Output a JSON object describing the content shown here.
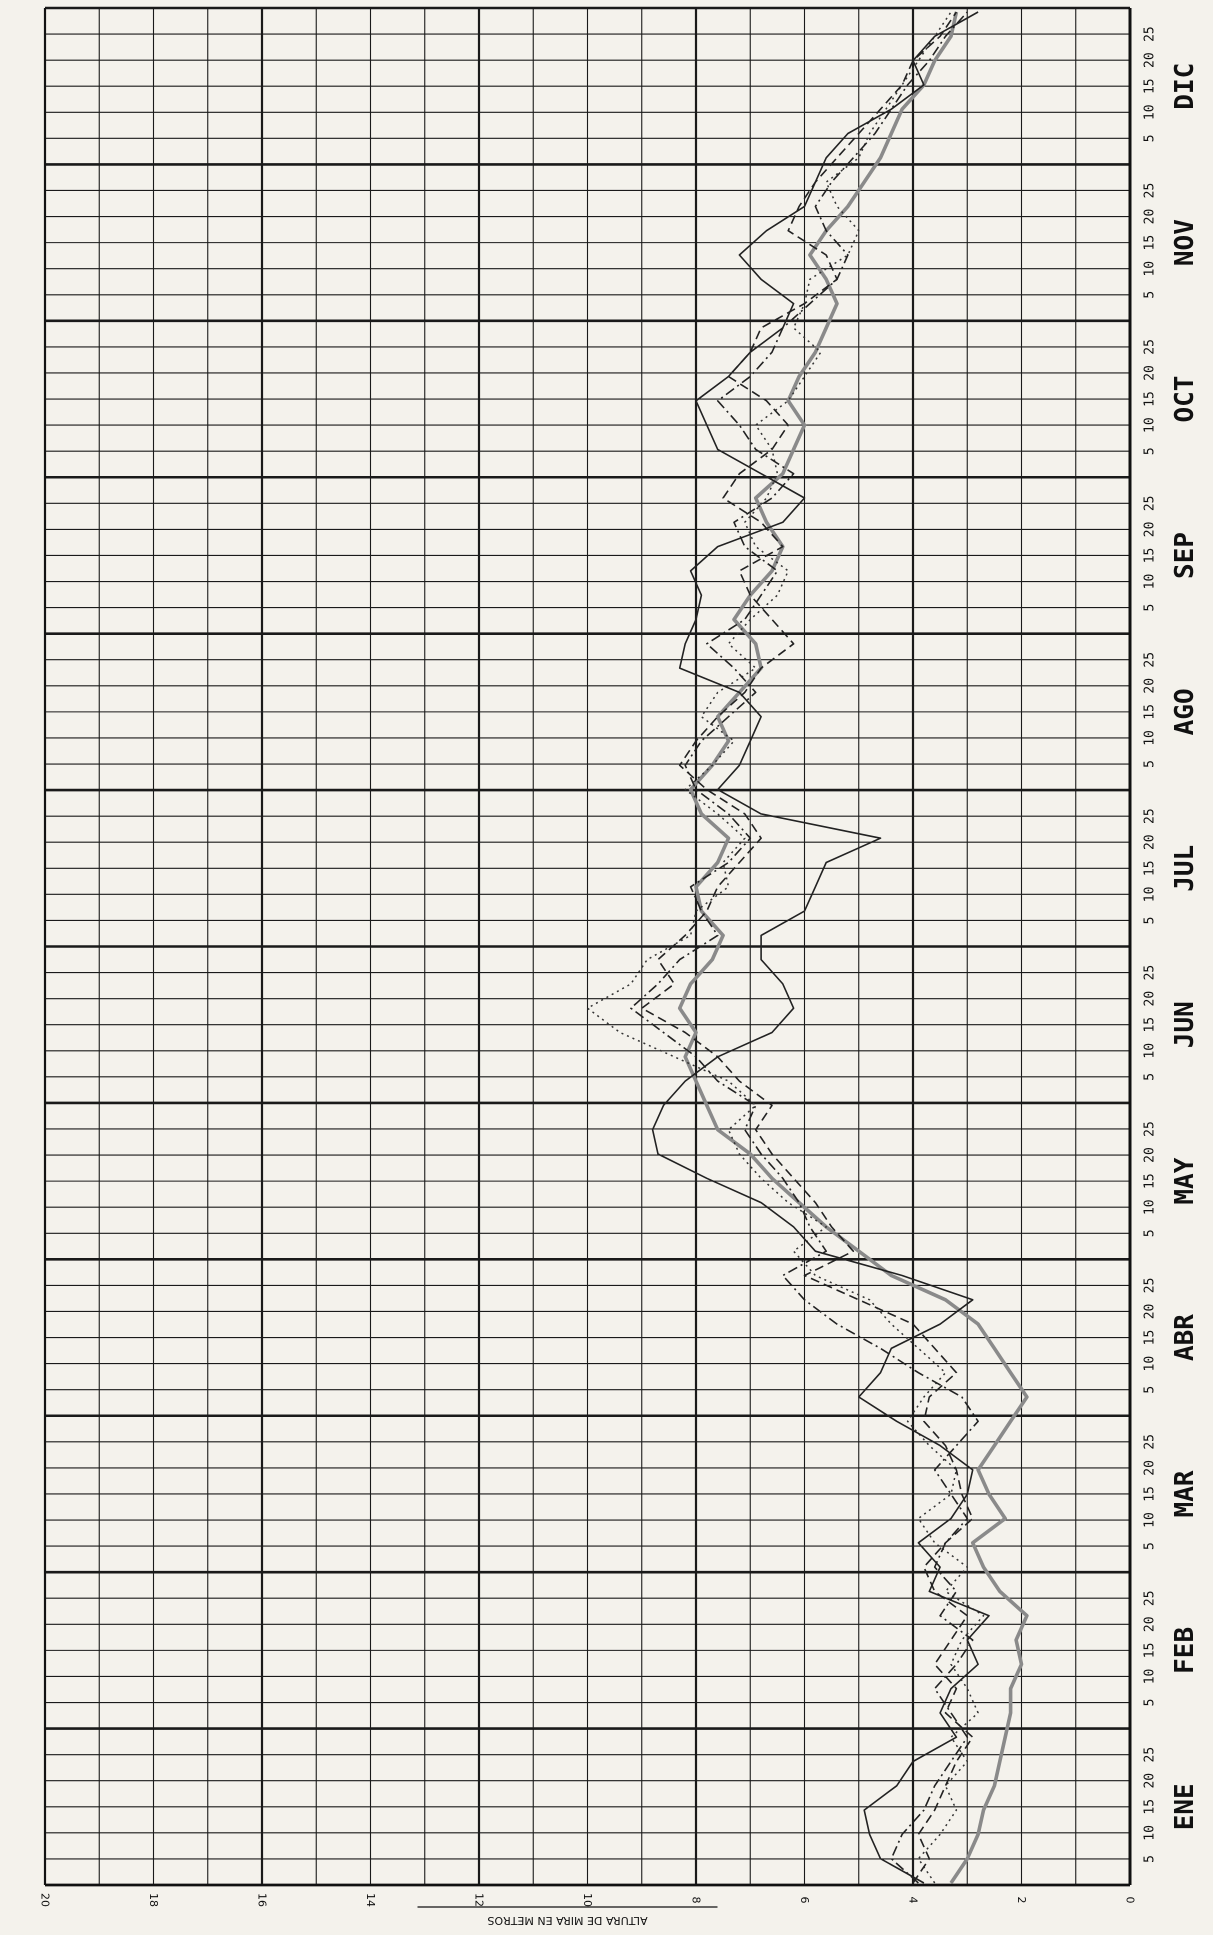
{
  "chart_data": {
    "type": "line",
    "ylabel": "ALTURA DE MIRA EN METROS",
    "ylim": [
      0,
      20
    ],
    "y_reversed": true,
    "y_tick_step_minor": 1,
    "y_ticks": [
      20,
      18,
      16,
      14,
      12,
      10,
      8,
      6,
      4,
      2,
      0
    ],
    "months": [
      "ENE",
      "FEB",
      "MAR",
      "ABR",
      "MAY",
      "JUN",
      "JUL",
      "AGO",
      "SEP",
      "OCT",
      "NOV",
      "DIC"
    ],
    "day_ticks": [
      5,
      10,
      15,
      20,
      25
    ],
    "grid": true,
    "series": [
      {
        "style": "solid",
        "values": [
          3.8,
          4.6,
          4.8,
          4.9,
          4.3,
          4.0,
          3.2,
          3.5,
          3.3,
          2.8,
          3.0,
          2.6,
          3.7,
          3.5,
          3.9,
          3.3,
          3.0,
          2.9,
          3.5,
          4.3,
          5.0,
          4.6,
          4.4,
          3.5,
          2.9,
          4.2,
          5.8,
          6.2,
          6.8,
          7.8,
          8.7,
          8.8,
          8.6,
          8.2,
          7.6,
          6.6,
          6.2,
          6.4,
          6.8,
          6.8,
          6.0,
          5.8,
          5.6,
          4.6,
          6.8,
          7.6,
          7.2,
          7.0,
          6.8,
          7.2,
          8.3,
          8.2,
          8.0,
          7.9,
          8.1,
          7.6,
          6.4,
          6.0,
          6.8,
          7.6,
          7.8,
          8.0,
          7.4,
          7.0,
          6.4,
          6.2,
          6.8,
          7.2,
          6.7,
          6.0,
          5.8,
          5.6,
          5.2,
          4.4,
          3.8,
          4.0,
          3.6,
          2.8
        ]
      },
      {
        "style": "dashed",
        "values": [
          4.0,
          3.7,
          3.9,
          3.6,
          3.4,
          3.2,
          2.9,
          3.4,
          3.2,
          3.6,
          3.3,
          3.0,
          3.6,
          3.8,
          3.4,
          2.9,
          3.1,
          3.2,
          3.4,
          3.8,
          3.7,
          3.2,
          3.6,
          4.0,
          5.0,
          6.0,
          5.1,
          5.5,
          5.8,
          6.2,
          6.6,
          6.9,
          6.6,
          7.2,
          7.6,
          8.2,
          9.0,
          8.4,
          8.7,
          8.2,
          7.8,
          7.6,
          7.2,
          6.8,
          7.1,
          7.8,
          8.3,
          8.0,
          7.6,
          7.1,
          6.8,
          6.2,
          6.6,
          7.0,
          7.2,
          6.4,
          6.8,
          7.5,
          7.2,
          6.6,
          6.3,
          6.7,
          7.4,
          7.0,
          6.8,
          6.0,
          5.4,
          5.6,
          6.3,
          6.1,
          5.8,
          5.4,
          5.0,
          4.6,
          4.2,
          4.0,
          3.5,
          3.2
        ]
      },
      {
        "style": "dashdot",
        "values": [
          3.9,
          4.4,
          4.2,
          3.8,
          3.6,
          3.3,
          3.0,
          3.3,
          3.6,
          3.2,
          2.9,
          3.5,
          3.2,
          3.6,
          3.4,
          3.0,
          3.3,
          3.6,
          3.2,
          2.8,
          3.1,
          3.9,
          4.6,
          5.4,
          6.0,
          6.4,
          5.6,
          5.9,
          6.1,
          6.4,
          6.8,
          7.1,
          6.9,
          7.6,
          8.0,
          8.6,
          9.2,
          8.7,
          8.3,
          7.6,
          7.9,
          8.1,
          7.4,
          7.0,
          7.4,
          8.0,
          8.2,
          7.9,
          7.4,
          6.9,
          7.3,
          7.8,
          7.1,
          6.8,
          6.5,
          7.1,
          7.3,
          6.6,
          6.2,
          6.9,
          7.2,
          7.6,
          7.0,
          6.6,
          6.4,
          5.9,
          5.4,
          5.2,
          5.6,
          5.8,
          5.5,
          5.1,
          4.7,
          4.4,
          4.1,
          3.7,
          3.4,
          3.0
        ]
      },
      {
        "style": "dotted",
        "values": [
          3.6,
          3.9,
          3.5,
          3.2,
          3.4,
          3.0,
          3.3,
          2.8,
          3.0,
          3.3,
          3.1,
          2.7,
          3.4,
          3.0,
          3.6,
          3.9,
          3.3,
          3.2,
          3.7,
          4.1,
          3.8,
          3.4,
          3.9,
          4.4,
          4.8,
          5.8,
          6.2,
          5.6,
          6.3,
          6.8,
          7.2,
          7.4,
          6.9,
          7.4,
          8.4,
          9.4,
          10.0,
          9.2,
          8.9,
          8.1,
          8.0,
          7.4,
          7.5,
          7.1,
          7.6,
          8.2,
          7.7,
          7.3,
          7.9,
          7.6,
          6.9,
          7.4,
          7.0,
          6.5,
          6.3,
          6.9,
          7.1,
          6.7,
          6.5,
          6.6,
          6.9,
          6.3,
          6.0,
          5.7,
          6.2,
          6.0,
          5.9,
          5.2,
          5.0,
          5.4,
          5.6,
          5.0,
          4.8,
          4.5,
          4.2,
          3.9,
          3.6,
          3.3
        ]
      },
      {
        "style": "gray-thick",
        "values": [
          3.3,
          3.0,
          2.8,
          2.7,
          2.5,
          2.4,
          2.3,
          2.2,
          2.2,
          2.0,
          2.1,
          1.9,
          2.4,
          2.7,
          2.9,
          2.3,
          2.6,
          2.8,
          2.5,
          2.2,
          1.9,
          2.2,
          2.5,
          2.8,
          3.4,
          4.4,
          5.0,
          5.6,
          6.1,
          6.6,
          7.0,
          7.6,
          7.8,
          8.0,
          8.2,
          8.0,
          8.3,
          8.1,
          7.7,
          7.5,
          7.9,
          8.0,
          7.6,
          7.4,
          7.9,
          8.1,
          7.7,
          7.4,
          7.6,
          7.2,
          6.8,
          6.9,
          7.3,
          7.0,
          6.6,
          6.4,
          6.7,
          6.9,
          6.4,
          6.2,
          6.0,
          6.3,
          6.1,
          5.8,
          5.6,
          5.4,
          5.6,
          5.9,
          5.6,
          5.2,
          4.9,
          4.6,
          4.4,
          4.2,
          3.8,
          3.6,
          3.3,
          3.2
        ]
      }
    ]
  }
}
